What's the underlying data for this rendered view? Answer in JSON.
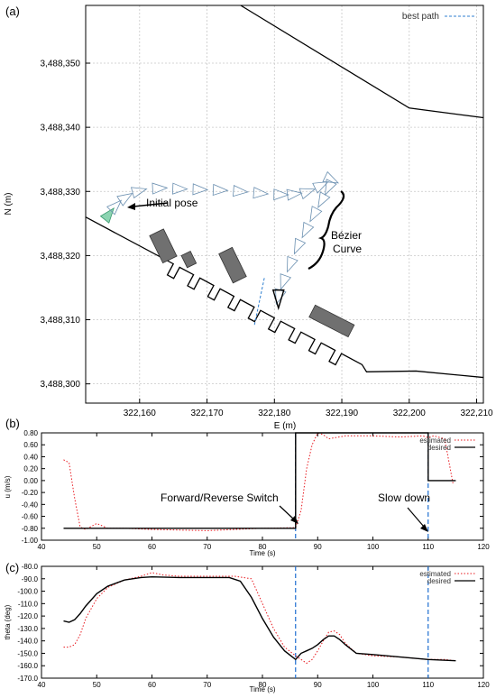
{
  "chart_data": [
    {
      "panel": "(a)",
      "type": "scatter",
      "xlabel": "E (m)",
      "ylabel": "N (m)",
      "xlim": [
        322152,
        322211
      ],
      "ylim": [
        3488297,
        3488359
      ],
      "xticks": [
        "322,160",
        "322,170",
        "322,180",
        "322,190",
        "322,200",
        "322,210"
      ],
      "yticks": [
        "3,488,350",
        "3,488,340",
        "3,488,330",
        "3,488,320",
        "3,488,310",
        "3,488,300"
      ],
      "xtick_values": [
        322160,
        322170,
        322180,
        322190,
        322200,
        322210
      ],
      "ytick_values": [
        3488350,
        3488340,
        3488330,
        3488320,
        3488310,
        3488300
      ],
      "grid": true,
      "legend": "top-right",
      "legend_label": "best path",
      "annotations": {
        "initial_pose": "Initial pose",
        "bezier": "Bézier",
        "curve": "Curve"
      },
      "upper_boundary": [
        [
          322175,
          3488359
        ],
        [
          322200,
          3488343
        ],
        [
          322211,
          3488341.5
        ]
      ],
      "lower_boundary": [
        [
          322152,
          3488326
        ],
        [
          322193,
          3488303
        ],
        [
          322201,
          3488302
        ],
        [
          322211,
          3488301
        ]
      ],
      "slots_x": [
        322165,
        322168,
        322171,
        322174,
        322177,
        322180,
        322183,
        322186,
        322189
      ],
      "path": [
        [
          322155.5,
          3488326.5
        ],
        [
          322156.5,
          3488327.8
        ],
        [
          322158,
          3488329.1
        ],
        [
          322160,
          3488330.1
        ],
        [
          322163,
          3488330.5
        ],
        [
          322166,
          3488330.4
        ],
        [
          322169,
          3488330.3
        ],
        [
          322172,
          3488330.2
        ],
        [
          322175,
          3488330.0
        ],
        [
          322178,
          3488329.7
        ],
        [
          322181,
          3488329.5
        ],
        [
          322183,
          3488329.6
        ],
        [
          322185,
          3488330.0
        ],
        [
          322187,
          3488331.0
        ],
        [
          322188.5,
          3488331.8
        ],
        [
          322188,
          3488330.5
        ],
        [
          322187,
          3488328.5
        ],
        [
          322185.8,
          3488326.3
        ],
        [
          322184.6,
          3488323.8
        ],
        [
          322183.4,
          3488321.3
        ],
        [
          322182.3,
          3488318.5
        ],
        [
          322181.3,
          3488315.8
        ],
        [
          322180.6,
          3488313.5
        ]
      ],
      "best_path": [
        [
          322178.5,
          3488316.5
        ],
        [
          322177,
          3488309
        ]
      ],
      "obstacles": [
        {
          "center": [
            322163.5,
            3488321.5
          ],
          "length": 4.5,
          "width": 2.3,
          "angle": -64
        },
        {
          "center": [
            322167.3,
            3488319.4
          ],
          "length": 2.0,
          "width": 1.5,
          "angle": -64
        },
        {
          "center": [
            322173.8,
            3488318.5
          ],
          "length": 4.8,
          "width": 2.2,
          "angle": -64
        },
        {
          "center": [
            322188.5,
            3488309.8
          ],
          "length": 6.5,
          "width": 2.0,
          "angle": -27
        }
      ]
    },
    {
      "panel": "(b)",
      "type": "line",
      "xlabel": "Time (s)",
      "ylabel": "u (m/s)",
      "xlim": [
        40,
        120
      ],
      "ylim": [
        -1.0,
        0.8
      ],
      "xticks": [
        "40",
        "50",
        "60",
        "70",
        "80",
        "90",
        "100",
        "110",
        "120"
      ],
      "yticks": [
        "-1.00",
        "-0.80",
        "-0.60",
        "-0.40",
        "-0.20",
        "0.00",
        "0.20",
        "0.40",
        "0.60",
        "0.80"
      ],
      "xtick_values": [
        40,
        50,
        60,
        70,
        80,
        90,
        100,
        110,
        120
      ],
      "ytick_values": [
        -1.0,
        -0.8,
        -0.6,
        -0.4,
        -0.2,
        0.0,
        0.2,
        0.4,
        0.6,
        0.8
      ],
      "legend": "top-right",
      "annotations": {
        "switch": "Forward/Reverse Switch",
        "slow": "Slow down"
      },
      "vlines": [
        86,
        110
      ],
      "series": [
        {
          "name": "estimated",
          "style": "dotted",
          "color": "#e8191f",
          "x": [
            44,
            45,
            46,
            47,
            48,
            50,
            52,
            55,
            60,
            70,
            80,
            86,
            87,
            88,
            89,
            90,
            91,
            92,
            95,
            100,
            105,
            109,
            110,
            111,
            113,
            114.5
          ],
          "y": [
            0.35,
            0.3,
            -0.3,
            -0.78,
            -0.82,
            -0.72,
            -0.8,
            -0.8,
            -0.82,
            -0.84,
            -0.8,
            -0.79,
            -0.5,
            0.2,
            0.6,
            0.8,
            0.77,
            0.7,
            0.75,
            0.75,
            0.73,
            0.75,
            0.72,
            0.75,
            0.7,
            -0.05
          ]
        },
        {
          "name": "desired",
          "style": "solid",
          "color": "#000000",
          "x": [
            44,
            86,
            86,
            110,
            110,
            115
          ],
          "y": [
            -0.8,
            -0.8,
            0.8,
            0.8,
            0.0,
            0.0
          ]
        }
      ]
    },
    {
      "panel": "(c)",
      "type": "line",
      "xlabel": "Time (s)",
      "ylabel": "theta (deg)",
      "xlim": [
        40,
        120
      ],
      "ylim": [
        -170,
        -80
      ],
      "xticks": [
        "40",
        "50",
        "60",
        "70",
        "80",
        "90",
        "100",
        "110",
        "120"
      ],
      "yticks": [
        "-80.0",
        "-90.0",
        "-100.0",
        "-110.0",
        "-120.0",
        "-130.0",
        "-140.0",
        "-150.0",
        "-160.0",
        "-170.0"
      ],
      "xtick_values": [
        40,
        50,
        60,
        70,
        80,
        90,
        100,
        110,
        120
      ],
      "ytick_values": [
        -80,
        -90,
        -100,
        -110,
        -120,
        -130,
        -140,
        -150,
        -160,
        -170
      ],
      "legend": "top-right",
      "vlines": [
        86,
        110
      ],
      "series": [
        {
          "name": "estimated",
          "style": "dotted",
          "color": "#e8191f",
          "x": [
            44,
            45,
            46,
            47,
            48,
            50,
            52,
            55,
            58,
            60,
            62,
            65,
            70,
            75,
            78,
            80,
            82,
            84,
            86,
            87,
            88,
            89,
            90,
            91,
            92,
            93,
            94,
            95,
            97,
            100,
            105,
            110,
            113,
            115
          ],
          "y": [
            -145,
            -145,
            -143,
            -135,
            -122,
            -106,
            -97,
            -91,
            -88,
            -85,
            -87,
            -88,
            -88,
            -88,
            -90,
            -110,
            -130,
            -145,
            -152,
            -155,
            -158,
            -155,
            -148,
            -140,
            -133,
            -132,
            -135,
            -142,
            -150,
            -152,
            -153,
            -155,
            -155,
            -156
          ]
        },
        {
          "name": "desired",
          "style": "solid",
          "color": "#000000",
          "x": [
            44,
            45,
            46,
            47,
            48,
            50,
            52,
            55,
            58,
            60,
            65,
            70,
            74,
            76,
            78,
            80,
            82,
            84,
            86,
            87,
            88,
            89,
            90,
            91,
            92,
            93,
            94,
            95,
            97,
            100,
            105,
            110,
            115
          ],
          "y": [
            -124,
            -125,
            -123,
            -118,
            -112,
            -102,
            -96,
            -91,
            -89,
            -88.5,
            -89,
            -89,
            -89,
            -92,
            -105,
            -122,
            -137,
            -148,
            -155,
            -150,
            -148,
            -146,
            -143,
            -139,
            -136,
            -136,
            -139,
            -143,
            -150,
            -151,
            -153,
            -155,
            -156
          ]
        }
      ]
    }
  ]
}
